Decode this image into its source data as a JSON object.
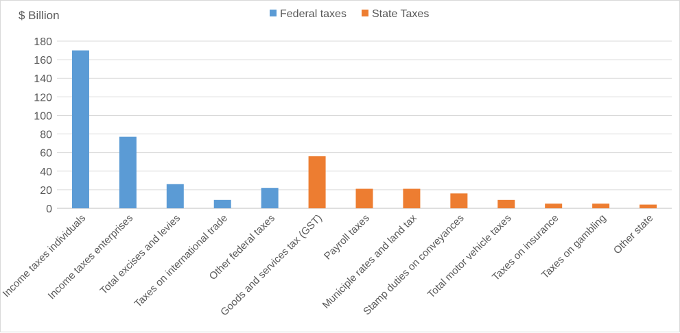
{
  "chart_data": {
    "type": "bar",
    "ylabel": "$ Billion",
    "ylim": [
      0,
      180
    ],
    "yticks": [
      0,
      20,
      40,
      60,
      80,
      100,
      120,
      140,
      160,
      180
    ],
    "grid": true,
    "legend_position": "top",
    "series": [
      {
        "name": "Federal taxes",
        "color": "#5b9bd5"
      },
      {
        "name": "State Taxes",
        "color": "#ed7d31"
      }
    ],
    "categories": [
      "Income taxes individuals",
      "Income taxes enterprises",
      "Total excises and levies",
      "Taxes on international trade",
      "Other federal taxes",
      "Goods and services tax (GST)",
      "Payroll taxes",
      "Municiple rates and land tax",
      "Stamp duties on conveyances",
      "Total motor vehicle taxes",
      "Taxes on insurance",
      "Taxes on gambling",
      "Other state"
    ],
    "values": [
      170,
      77,
      26,
      9,
      22,
      56,
      21,
      21,
      16,
      9,
      5,
      5,
      4
    ],
    "bar_series": [
      0,
      0,
      0,
      0,
      0,
      1,
      1,
      1,
      1,
      1,
      1,
      1,
      1
    ]
  }
}
